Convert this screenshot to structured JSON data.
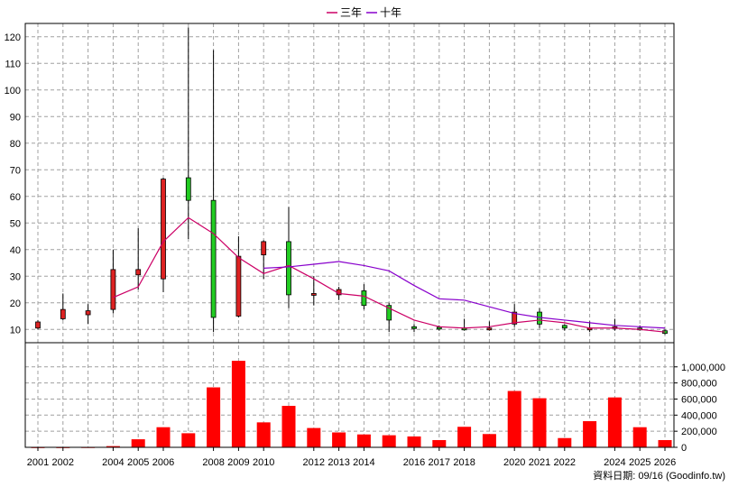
{
  "legend": [
    {
      "label": "三年",
      "color": "#cc0066"
    },
    {
      "label": "十年",
      "color": "#8800cc"
    }
  ],
  "footer": "資料日期: 09/16  (Goodinfo.tw)",
  "chart_data": {
    "type": "candlestick",
    "x_tick_labels": [
      "2001",
      "2002",
      "2004",
      "2005",
      "2006",
      "2008",
      "2009",
      "2010",
      "2012",
      "2013",
      "2014",
      "2016",
      "2017",
      "2018",
      "2020",
      "2021",
      "2022",
      "2024",
      "2025",
      "2026"
    ],
    "price_axis": {
      "ylim": [
        5,
        125
      ],
      "ticks": [
        10,
        20,
        30,
        40,
        50,
        60,
        70,
        80,
        90,
        100,
        110,
        120
      ]
    },
    "volume_axis": {
      "ylim": [
        0,
        1300000
      ],
      "ticks": [
        0,
        200000,
        400000,
        600000,
        800000,
        1000000
      ],
      "tick_labels": [
        "0",
        "200,000",
        "400,000",
        "600,000",
        "800,000",
        "1,000,000"
      ]
    },
    "candles": [
      {
        "year": 2001,
        "open": 10.5,
        "high": 13.5,
        "low": 10,
        "close": 12.8
      },
      {
        "year": 2002,
        "open": 14,
        "high": 23.5,
        "low": 13.5,
        "close": 17.5
      },
      {
        "year": 2003,
        "open": 15.5,
        "high": 19.5,
        "low": 12,
        "close": 17
      },
      {
        "year": 2004,
        "open": 17.5,
        "high": 40,
        "low": 16,
        "close": 32.5
      },
      {
        "year": 2005,
        "open": 30.5,
        "high": 48,
        "low": 25,
        "close": 32.5
      },
      {
        "year": 2006,
        "open": 29,
        "high": 67,
        "low": 24,
        "close": 66.5
      },
      {
        "year": 2007,
        "open": 67,
        "high": 123.5,
        "low": 44,
        "close": 58.5
      },
      {
        "year": 2008,
        "open": 58.5,
        "high": 115,
        "low": 9,
        "close": 14.5
      },
      {
        "year": 2009,
        "open": 15,
        "high": 45,
        "low": 14.5,
        "close": 37.5
      },
      {
        "year": 2010,
        "open": 38,
        "high": 43.5,
        "low": 29,
        "close": 43
      },
      {
        "year": 2011,
        "open": 43,
        "high": 56,
        "low": 18,
        "close": 23
      },
      {
        "year": 2012,
        "open": 23,
        "high": 30,
        "low": 19,
        "close": 23.5
      },
      {
        "year": 2013,
        "open": 23,
        "high": 26,
        "low": 21,
        "close": 25
      },
      {
        "year": 2014,
        "open": 24.5,
        "high": 27,
        "low": 17.5,
        "close": 19
      },
      {
        "year": 2015,
        "open": 19,
        "high": 20,
        "low": 9,
        "close": 13.5
      },
      {
        "year": 2016,
        "open": 11,
        "high": 12,
        "low": 9,
        "close": 10.5
      },
      {
        "year": 2017,
        "open": 10.8,
        "high": 11.5,
        "low": 9.5,
        "close": 10.5
      },
      {
        "year": 2018,
        "open": 10.5,
        "high": 14,
        "low": 9.5,
        "close": 10
      },
      {
        "year": 2019,
        "open": 10.5,
        "high": 13,
        "low": 9.5,
        "close": 10.5
      },
      {
        "year": 2020,
        "open": 12,
        "high": 19.5,
        "low": 11,
        "close": 16.5
      },
      {
        "year": 2021,
        "open": 16.5,
        "high": 18,
        "low": 10.5,
        "close": 12
      },
      {
        "year": 2022,
        "open": 11.5,
        "high": 12,
        "low": 9.5,
        "close": 10.5
      },
      {
        "year": 2023,
        "open": 10,
        "high": 13,
        "low": 9,
        "close": 10.5
      },
      {
        "year": 2024,
        "open": 10.5,
        "high": 14,
        "low": 9.5,
        "close": 11
      },
      {
        "year": 2025,
        "open": 10.5,
        "high": 11.5,
        "low": 9.5,
        "close": 10
      },
      {
        "year": 2026,
        "open": 9.5,
        "high": 10,
        "low": 8,
        "close": 8.5
      }
    ],
    "volume": [
      {
        "year": 2001,
        "value": 2000
      },
      {
        "year": 2002,
        "value": 2000
      },
      {
        "year": 2003,
        "value": 3000
      },
      {
        "year": 2004,
        "value": 15000
      },
      {
        "year": 2005,
        "value": 100000
      },
      {
        "year": 2006,
        "value": 250000
      },
      {
        "year": 2007,
        "value": 175000
      },
      {
        "year": 2008,
        "value": 745000
      },
      {
        "year": 2009,
        "value": 1075000
      },
      {
        "year": 2010,
        "value": 310000
      },
      {
        "year": 2011,
        "value": 515000
      },
      {
        "year": 2012,
        "value": 240000
      },
      {
        "year": 2013,
        "value": 185000
      },
      {
        "year": 2014,
        "value": 160000
      },
      {
        "year": 2015,
        "value": 150000
      },
      {
        "year": 2016,
        "value": 135000
      },
      {
        "year": 2017,
        "value": 90000
      },
      {
        "year": 2018,
        "value": 255000
      },
      {
        "year": 2019,
        "value": 165000
      },
      {
        "year": 2020,
        "value": 700000
      },
      {
        "year": 2021,
        "value": 610000
      },
      {
        "year": 2022,
        "value": 115000
      },
      {
        "year": 2023,
        "value": 325000
      },
      {
        "year": 2024,
        "value": 620000
      },
      {
        "year": 2025,
        "value": 250000
      },
      {
        "year": 2026,
        "value": 90000
      }
    ],
    "series": [
      {
        "name": "三年",
        "color": "#cc0066",
        "points": [
          {
            "year": 2004,
            "value": 22
          },
          {
            "year": 2005,
            "value": 26
          },
          {
            "year": 2006,
            "value": 43
          },
          {
            "year": 2007,
            "value": 52
          },
          {
            "year": 2008,
            "value": 46
          },
          {
            "year": 2009,
            "value": 37
          },
          {
            "year": 2010,
            "value": 31
          },
          {
            "year": 2011,
            "value": 34
          },
          {
            "year": 2012,
            "value": 29
          },
          {
            "year": 2013,
            "value": 23.5
          },
          {
            "year": 2014,
            "value": 22.5
          },
          {
            "year": 2015,
            "value": 18
          },
          {
            "year": 2016,
            "value": 13.5
          },
          {
            "year": 2017,
            "value": 11
          },
          {
            "year": 2018,
            "value": 10.5
          },
          {
            "year": 2019,
            "value": 11
          },
          {
            "year": 2020,
            "value": 12.5
          },
          {
            "year": 2021,
            "value": 13.5
          },
          {
            "year": 2022,
            "value": 12.5
          },
          {
            "year": 2023,
            "value": 10.5
          },
          {
            "year": 2024,
            "value": 10.5
          },
          {
            "year": 2025,
            "value": 10
          },
          {
            "year": 2026,
            "value": 9
          }
        ]
      },
      {
        "name": "十年",
        "color": "#8800cc",
        "points": [
          {
            "year": 2010,
            "value": 33
          },
          {
            "year": 2011,
            "value": 33.5
          },
          {
            "year": 2012,
            "value": 34.5
          },
          {
            "year": 2013,
            "value": 35.5
          },
          {
            "year": 2014,
            "value": 34
          },
          {
            "year": 2015,
            "value": 32
          },
          {
            "year": 2016,
            "value": 26.5
          },
          {
            "year": 2017,
            "value": 21.5
          },
          {
            "year": 2018,
            "value": 21
          },
          {
            "year": 2019,
            "value": 18.5
          },
          {
            "year": 2020,
            "value": 16
          },
          {
            "year": 2021,
            "value": 14.5
          },
          {
            "year": 2022,
            "value": 13.5
          },
          {
            "year": 2023,
            "value": 12.5
          },
          {
            "year": 2024,
            "value": 11.5
          },
          {
            "year": 2025,
            "value": 11
          },
          {
            "year": 2026,
            "value": 10.5
          }
        ]
      }
    ],
    "grid": true,
    "legend_position": "top-center",
    "colors": {
      "up": "#dd2222",
      "down": "#22cc22",
      "volume": "#ff0000",
      "axis": "#000000"
    }
  }
}
